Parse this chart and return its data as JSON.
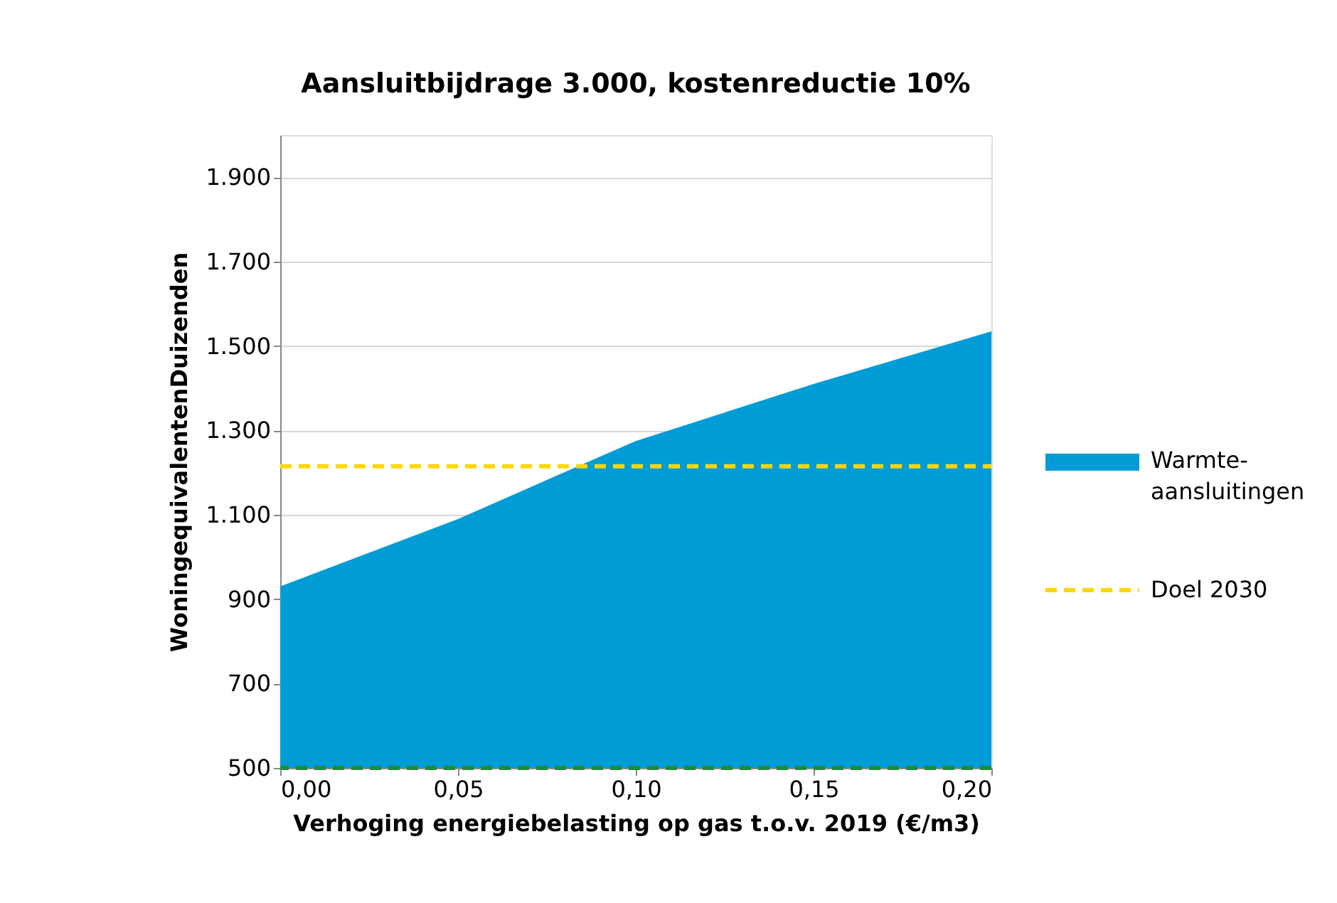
{
  "chart_data": {
    "type": "area",
    "title": "Aansluitbijdrage 3.000, kostenreductie 10%",
    "xlabel": "Verhoging energiebelasting op gas t.o.v. 2019 (€/m3)",
    "ylabel": "WoningequivalentenDuizenden",
    "x": [
      0,
      0.05,
      0.1,
      0.15,
      0.2
    ],
    "series": [
      {
        "name": "Warmte-aansluitingen",
        "color": "#009cd6",
        "values": [
          930,
          1090,
          1275,
          1410,
          1535
        ]
      },
      {
        "name": "Doel 2030",
        "type": "line",
        "color": "#ffd700",
        "line_style": "dashed",
        "values": [
          1215,
          1215,
          1215,
          1215,
          1215
        ]
      }
    ],
    "ref_lines": [
      {
        "axis": "y",
        "value": 500,
        "color": "#1e8c3a",
        "line_style": "dashed"
      }
    ],
    "xlim": [
      0,
      0.2
    ],
    "xticks": [
      {
        "value": 0,
        "label": "0,00"
      },
      {
        "value": 0.05,
        "label": "0,05"
      },
      {
        "value": 0.1,
        "label": "0,10"
      },
      {
        "value": 0.15,
        "label": "0,15"
      },
      {
        "value": 0.2,
        "label": "0,20"
      }
    ],
    "ylim": [
      500,
      2000
    ],
    "yticks": [
      500,
      700,
      900,
      {
        "value": 1100,
        "label": "1.100"
      },
      {
        "value": 1300,
        "label": "1.300"
      },
      {
        "value": 1500,
        "label": "1.500"
      },
      {
        "value": 1700,
        "label": "1.700"
      },
      {
        "value": 1900,
        "label": "1.900"
      }
    ],
    "grid": "y",
    "legend": "right"
  }
}
